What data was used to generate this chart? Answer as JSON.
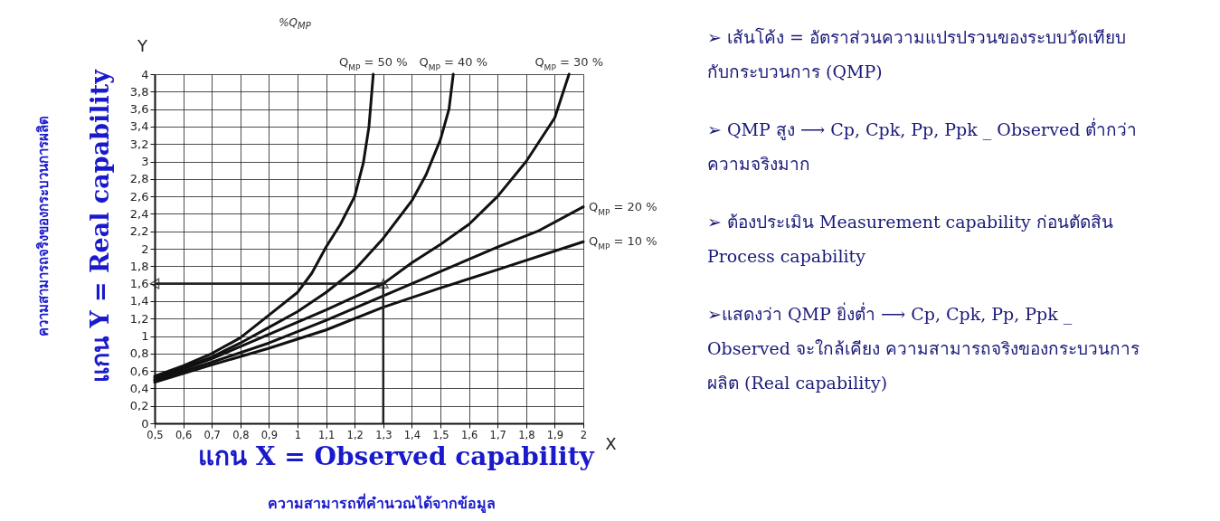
{
  "chart_data": {
    "type": "line",
    "xlabel": "X",
    "ylabel": "Y",
    "legend_title": "%Q$_{MP}$",
    "xlim": [
      0.5,
      2
    ],
    "ylim": [
      0,
      4
    ],
    "xticks": [
      {
        "value": 0.5,
        "label": "0,5"
      },
      {
        "value": 0.6,
        "label": "0,6"
      },
      {
        "value": 0.7,
        "label": "0,7"
      },
      {
        "value": 0.8,
        "label": "0,8"
      },
      {
        "value": 0.9,
        "label": "0,9"
      },
      1,
      {
        "value": 1.1,
        "label": "1,1"
      },
      {
        "value": 1.2,
        "label": "1,2"
      },
      {
        "value": 1.3,
        "label": "1,3"
      },
      {
        "value": 1.4,
        "label": "1,4"
      },
      {
        "value": 1.5,
        "label": "1,5"
      },
      {
        "value": 1.6,
        "label": "1,6"
      },
      {
        "value": 1.7,
        "label": "1,7"
      },
      {
        "value": 1.8,
        "label": "1,8"
      },
      {
        "value": 1.9,
        "label": "1,9"
      },
      2
    ],
    "yticks": [
      0,
      {
        "value": 0.2,
        "label": "0,2"
      },
      {
        "value": 0.4,
        "label": "0,4"
      },
      {
        "value": 0.6,
        "label": "0,6"
      },
      {
        "value": 0.8,
        "label": "0,8"
      },
      1,
      {
        "value": 1.2,
        "label": "1,2"
      },
      {
        "value": 1.4,
        "label": "1,4"
      },
      {
        "value": 1.6,
        "label": "1,6"
      },
      {
        "value": 1.8,
        "label": "1,8"
      },
      2,
      {
        "value": 2.2,
        "label": "2,2"
      },
      {
        "value": 2.4,
        "label": "2,4"
      },
      {
        "value": 2.6,
        "label": "2,6"
      },
      {
        "value": 2.8,
        "label": "2,8"
      },
      3,
      {
        "value": 3.2,
        "label": "3,2"
      },
      {
        "value": 3.4,
        "label": "3,4"
      },
      {
        "value": 3.6,
        "label": "3,6"
      },
      {
        "value": 3.8,
        "label": "3,8"
      },
      4
    ],
    "grid": true,
    "legend": false,
    "series": [
      {
        "name": "Q$_{MP}$ = 50 %",
        "color": "#111111",
        "x": [
          0.5,
          0.6,
          0.7,
          0.8,
          0.9,
          1.0,
          1.05,
          1.1,
          1.15,
          1.2,
          1.23,
          1.25,
          1.265
        ],
        "values": [
          0.54,
          0.66,
          0.8,
          0.98,
          1.24,
          1.5,
          1.72,
          2.02,
          2.28,
          2.6,
          2.98,
          3.4,
          4
        ]
      },
      {
        "name": "Q$_{MP}$ = 40 %",
        "color": "#111111",
        "x": [
          0.5,
          0.6,
          0.7,
          0.8,
          0.9,
          1.0,
          1.1,
          1.2,
          1.3,
          1.4,
          1.45,
          1.5,
          1.53,
          1.545
        ],
        "values": [
          0.52,
          0.64,
          0.76,
          0.92,
          1.1,
          1.28,
          1.5,
          1.76,
          2.12,
          2.55,
          2.85,
          3.25,
          3.6,
          4
        ]
      },
      {
        "name": "Q$_{MP}$ = 30 %",
        "color": "#111111",
        "x": [
          0.5,
          0.6,
          0.7,
          0.8,
          0.9,
          1.0,
          1.1,
          1.2,
          1.3,
          1.4,
          1.5,
          1.6,
          1.7,
          1.8,
          1.9,
          1.95
        ],
        "values": [
          0.5,
          0.62,
          0.74,
          0.88,
          1.02,
          1.16,
          1.3,
          1.45,
          1.6,
          1.84,
          2.05,
          2.28,
          2.6,
          3.0,
          3.5,
          4
        ]
      },
      {
        "name": "Q$_{MP}$ = 20 %",
        "color": "#111111",
        "x": [
          0.5,
          0.7,
          0.9,
          1.1,
          1.3,
          1.5,
          1.7,
          1.84,
          2
        ],
        "values": [
          0.49,
          0.7,
          0.92,
          1.18,
          1.46,
          1.74,
          2.02,
          2.2,
          2.48
        ]
      },
      {
        "name": "Q$_{MP}$ = 10 %",
        "color": "#111111",
        "x": [
          0.5,
          0.7,
          0.9,
          1.1,
          1.3,
          1.5,
          1.7,
          2
        ],
        "values": [
          0.47,
          0.67,
          0.86,
          1.07,
          1.33,
          1.55,
          1.76,
          2.08
        ]
      }
    ],
    "ref_lines": [
      {
        "axis": "x",
        "value": 1.3,
        "color": "#222222"
      },
      {
        "axis": "y",
        "value": 1.6,
        "color": "#222222"
      }
    ],
    "annotations": [
      "ความสามารถจริงของกระบวนการผลิต",
      "แกน Y = Real capability",
      "แกน X = Observed capability",
      "ความสามารถที่คำนวณได้จากข้อมูล",
      "➢ เส้นโค้ง = อัตราส่วนความแปรปรวนของระบบวัดเทียบกับกระบวนการ (QMP)",
      "➢ QMP สูง ⟶ Cp, Cpk, Pp, Ppk _ Observed ต่ำกว่าความจริงมาก",
      "➢ ต้องประเมิน Measurement capability ก่อนตัดสิน Process capability",
      "➢แสดงว่า QMP ยิ่งต่ำ ⟶ Cp, Cpk, Pp, Ppk _ Observed จะใกล้เคียง ความสามารถจริงของกระบวนการผลิต (Real capability)"
    ]
  }
}
